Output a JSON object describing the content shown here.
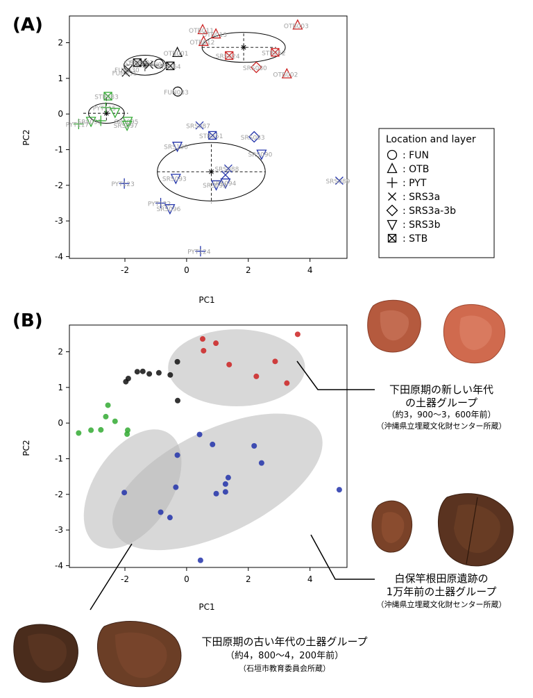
{
  "panel_a": {
    "label": "(A)",
    "xlabel": "PC1",
    "ylabel": "PC2",
    "xticks": [
      "-2",
      "0",
      "2",
      "4"
    ],
    "yticks": [
      "-4",
      "-3",
      "-2",
      "-1",
      "0",
      "1",
      "2"
    ]
  },
  "panel_b": {
    "label": "(B)",
    "xlabel": "PC1",
    "ylabel": "PC2",
    "xticks": [
      "-2",
      "0",
      "2",
      "4"
    ],
    "yticks": [
      "-4",
      "-3",
      "-2",
      "-1",
      "0",
      "1",
      "2"
    ]
  },
  "legend": {
    "title": "Location and layer",
    "items": [
      {
        "symbol": "circle",
        "label": ": FUN"
      },
      {
        "symbol": "triangle",
        "label": ": OTB"
      },
      {
        "symbol": "plus",
        "label": ": PYT"
      },
      {
        "symbol": "cross",
        "label": ": SRS3a"
      },
      {
        "symbol": "diamond",
        "label": ": SRS3a-3b"
      },
      {
        "symbol": "triangle-down",
        "label": ": SRS3b"
      },
      {
        "symbol": "boxcross",
        "label": ": STB"
      }
    ]
  },
  "annotations": {
    "new": {
      "line1": "下田原期の新しい年代",
      "line2": "の土器グループ",
      "line3": "（約3，900～3，600年前）",
      "line4": "（沖縄県立埋蔵文化財センター所蔵）"
    },
    "srs": {
      "line1": "白保竿根田原遺跡の",
      "line2": "1万年前の土器グループ",
      "line3": "（沖縄県立埋蔵文化財センター所蔵）"
    },
    "old": {
      "line1": "下田原期の古い年代の土器グループ",
      "line2": "（約4，800～4，200年前）",
      "line3": "（石垣市教育委員会所蔵）"
    }
  },
  "colors": {
    "black": "#111111",
    "red": "#cc2222",
    "green": "#33aa33",
    "blue": "#2233aa",
    "label_gray": "#a0a0a0",
    "ellipse_fill": "#b8b8b8"
  },
  "chart_data": {
    "type": "scatter",
    "xlabel": "PC1",
    "ylabel": "PC2",
    "xlim": [
      -3.8,
      5.2
    ],
    "ylim": [
      -4.05,
      2.75
    ],
    "groups": [
      {
        "color": "black",
        "points": [
          {
            "x": -0.3,
            "y": 1.72,
            "sym": "triangle",
            "label": "OTB001"
          },
          {
            "x": -1.97,
            "y": 1.16,
            "sym": "cross",
            "label": "FUN031"
          },
          {
            "x": -1.89,
            "y": 1.25,
            "sym": "cross",
            "label": "FUN030"
          },
          {
            "x": -1.6,
            "y": 1.44,
            "sym": "boxcross",
            "label": "STB007"
          },
          {
            "x": -1.42,
            "y": 1.45,
            "sym": "cross",
            "label": "STB031"
          },
          {
            "x": -1.21,
            "y": 1.38,
            "sym": "cross",
            "label": ""
          },
          {
            "x": -0.9,
            "y": 1.41,
            "sym": "circle",
            "label": "FUN032"
          },
          {
            "x": -0.53,
            "y": 1.35,
            "sym": "boxcross",
            "label": "STB064"
          },
          {
            "x": -0.29,
            "y": 0.63,
            "sym": "circle",
            "label": "FUN033"
          }
        ]
      },
      {
        "color": "red",
        "points": [
          {
            "x": 0.52,
            "y": 2.36,
            "sym": "triangle",
            "label": "OTB011"
          },
          {
            "x": 0.95,
            "y": 2.24,
            "sym": "triangle",
            "label": "OTB013"
          },
          {
            "x": 0.55,
            "y": 2.03,
            "sym": "triangle",
            "label": "OTB012"
          },
          {
            "x": 1.38,
            "y": 1.64,
            "sym": "boxcross",
            "label": "SRS024"
          },
          {
            "x": 2.87,
            "y": 1.73,
            "sym": "boxcross",
            "label": "STB052"
          },
          {
            "x": 3.6,
            "y": 2.49,
            "sym": "triangle",
            "label": "OTB003"
          },
          {
            "x": 2.26,
            "y": 1.31,
            "sym": "diamond",
            "label": "SRS080"
          },
          {
            "x": 3.25,
            "y": 1.12,
            "sym": "triangle",
            "label": "OTB002"
          }
        ]
      },
      {
        "color": "green",
        "points": [
          {
            "x": -3.5,
            "y": -0.28,
            "sym": "plus",
            "label": "PYT117"
          },
          {
            "x": -3.1,
            "y": -0.2,
            "sym": "triangle-down",
            "label": "SRS091"
          },
          {
            "x": -2.55,
            "y": 0.5,
            "sym": "boxcross",
            "label": "STB083"
          },
          {
            "x": -2.62,
            "y": 0.18,
            "sym": "plus",
            "label": "PYT115"
          },
          {
            "x": -2.78,
            "y": -0.19,
            "sym": "plus",
            "label": ""
          },
          {
            "x": -2.32,
            "y": 0.05,
            "sym": "triangle-down",
            "label": ""
          },
          {
            "x": -1.91,
            "y": -0.2,
            "sym": "triangle-down",
            "label": "SRS095"
          },
          {
            "x": -1.93,
            "y": -0.31,
            "sym": "triangle-down",
            "label": "SRS097"
          }
        ]
      },
      {
        "color": "blue",
        "points": [
          {
            "x": 0.42,
            "y": -0.32,
            "sym": "cross",
            "label": "SRS087"
          },
          {
            "x": 0.84,
            "y": -0.6,
            "sym": "boxcross",
            "label": "STB051"
          },
          {
            "x": 2.19,
            "y": -0.64,
            "sym": "diamond",
            "label": "SRS083"
          },
          {
            "x": -0.3,
            "y": -0.9,
            "sym": "triangle-down",
            "label": "SRS100"
          },
          {
            "x": 2.43,
            "y": -1.12,
            "sym": "triangle-down",
            "label": "SRS090"
          },
          {
            "x": 1.35,
            "y": -1.53,
            "sym": "cross",
            "label": "SRS088"
          },
          {
            "x": 1.26,
            "y": -1.71,
            "sym": "cross",
            "label": ""
          },
          {
            "x": -0.35,
            "y": -1.8,
            "sym": "triangle-down",
            "label": "SRS093"
          },
          {
            "x": 1.26,
            "y": -1.93,
            "sym": "triangle-down",
            "label": "SRS094"
          },
          {
            "x": 0.96,
            "y": -1.98,
            "sym": "triangle-down",
            "label": "SRS092"
          },
          {
            "x": -2.02,
            "y": -1.95,
            "sym": "plus",
            "label": "PYT123"
          },
          {
            "x": 4.95,
            "y": -1.87,
            "sym": "cross",
            "label": "SRS089"
          },
          {
            "x": -0.84,
            "y": -2.5,
            "sym": "plus",
            "label": "PYT122"
          },
          {
            "x": -0.54,
            "y": -2.65,
            "sym": "triangle-down",
            "label": "SRS096"
          },
          {
            "x": 0.45,
            "y": -3.85,
            "sym": "plus",
            "label": "PYT124"
          }
        ]
      }
    ],
    "cluster_ellipses": [
      {
        "cx": 1.85,
        "cy": 1.87,
        "rx": 1.35,
        "ry": 0.42,
        "color": "black",
        "hx": [
          0.5,
          2.9
        ],
        "hy": [
          1.5,
          2.28
        ]
      },
      {
        "cx": -1.35,
        "cy": 1.37,
        "rx": 0.68,
        "ry": 0.28,
        "color": "black",
        "hx": [
          -1.95,
          -0.5
        ],
        "hy": [
          1.2,
          1.55
        ]
      },
      {
        "cx": -2.6,
        "cy": 0.02,
        "rx": 0.58,
        "ry": 0.28,
        "color": "black",
        "hx": [
          -3.35,
          -1.9
        ],
        "hy": [
          -0.18,
          0.48
        ]
      },
      {
        "cx": 0.8,
        "cy": -1.62,
        "rx": 1.75,
        "ry": 0.82,
        "color": "black",
        "hx": [
          -0.95,
          2.55
        ],
        "hy": [
          -0.85,
          -2.5
        ]
      }
    ],
    "panel_b_ellipses": [
      {
        "cx": 1.62,
        "cy": 1.55,
        "rx": 2.22,
        "ry": 1.08,
        "angle": 0
      },
      {
        "cx": 1.0,
        "cy": -1.65,
        "rx": 3.7,
        "ry": 1.45,
        "angle": -26
      },
      {
        "cx": -1.75,
        "cy": -1.85,
        "rx": 2.15,
        "ry": 1.1,
        "angle": -57
      }
    ]
  }
}
